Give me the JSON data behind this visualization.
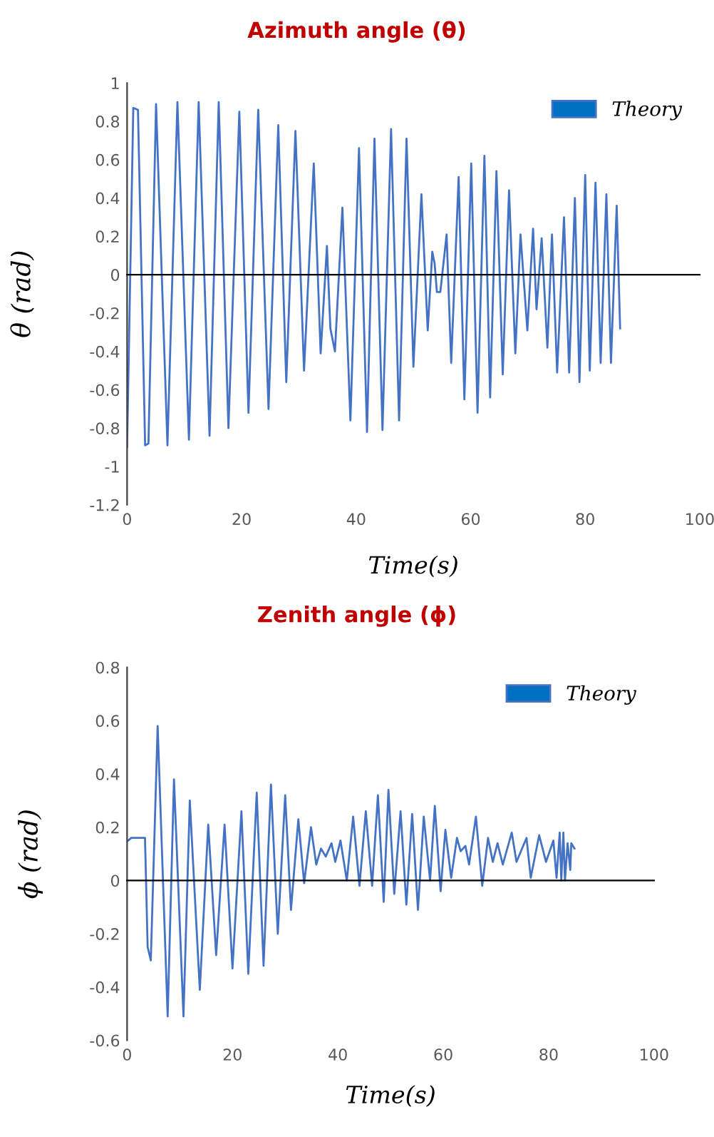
{
  "chart_data": [
    {
      "type": "line",
      "title": "Azimuth angle (θ)",
      "xlabel": "Time(s)",
      "ylabel": "θ (rad)",
      "xlim": [
        0,
        100
      ],
      "xticks": [
        0,
        20,
        40,
        60,
        80,
        100
      ],
      "ylim": [
        -1.2,
        1
      ],
      "yticks": [
        1,
        0.8,
        0.6,
        0.4,
        0.2,
        0,
        -0.2,
        -0.4,
        -0.6,
        -0.8,
        -1,
        -1.2
      ],
      "legend": "top right",
      "marker": "none",
      "line_style": "solid",
      "series": [
        {
          "name": "Theory",
          "color": "#4472c4",
          "x": [
            0,
            1.08,
            1.9,
            3.15,
            3.73,
            5.06,
            7.05,
            8.79,
            10.8,
            12.5,
            14.4,
            16.0,
            17.7,
            19.6,
            21.2,
            22.9,
            24.7,
            26.4,
            27.8,
            29.4,
            30.9,
            32.6,
            33.8,
            34.9,
            35.5,
            36.3,
            37.6,
            39.0,
            40.5,
            41.9,
            43.2,
            44.6,
            46.1,
            47.5,
            48.8,
            50.0,
            51.4,
            52.5,
            53.3,
            53.7,
            54.1,
            54.7,
            55.8,
            56.6,
            57.9,
            58.9,
            60.1,
            61.2,
            62.4,
            63.4,
            64.5,
            65.6,
            66.7,
            67.8,
            68.7,
            69.9,
            70.9,
            71.5,
            72.4,
            73.4,
            74.2,
            75.1,
            76.3,
            77.2,
            78.2,
            79.0,
            80.0,
            80.8,
            81.8,
            82.7,
            83.7,
            84.5,
            85.5,
            86.1
          ],
          "values": [
            -0.9,
            0.87,
            0.86,
            -0.89,
            -0.88,
            0.89,
            -0.89,
            0.9,
            -0.86,
            0.9,
            -0.84,
            0.9,
            -0.8,
            0.85,
            -0.72,
            0.86,
            -0.7,
            0.78,
            -0.56,
            0.75,
            -0.5,
            0.58,
            -0.41,
            0.15,
            -0.28,
            -0.4,
            0.35,
            -0.76,
            0.66,
            -0.82,
            0.71,
            -0.81,
            0.76,
            -0.76,
            0.71,
            -0.48,
            0.42,
            -0.29,
            0.12,
            0.06,
            -0.09,
            -0.09,
            0.21,
            -0.46,
            0.51,
            -0.65,
            0.58,
            -0.72,
            0.62,
            -0.64,
            0.54,
            -0.52,
            0.44,
            -0.41,
            0.21,
            -0.29,
            0.24,
            -0.18,
            0.19,
            -0.38,
            0.21,
            -0.51,
            0.3,
            -0.51,
            0.4,
            -0.56,
            0.52,
            -0.5,
            0.48,
            -0.46,
            0.42,
            -0.46,
            0.36,
            -0.28
          ]
        }
      ]
    },
    {
      "type": "line",
      "title": "Zenith angle (ϕ)",
      "xlabel": "Time(s)",
      "ylabel": "ϕ (rad)",
      "xlim": [
        0,
        100
      ],
      "xticks": [
        0,
        20,
        40,
        60,
        80,
        100
      ],
      "ylim": [
        -0.6,
        0.8
      ],
      "yticks": [
        0.8,
        0.6,
        0.4,
        0.2,
        0,
        -0.2,
        -0.4,
        -0.6
      ],
      "legend": "top right",
      "marker": "none",
      "line_style": "solid",
      "series": [
        {
          "name": "Theory",
          "color": "#4472c4",
          "x": [
            0.2,
            0.8,
            3.4,
            3.9,
            4.5,
            5.8,
            7.7,
            8.9,
            10.7,
            11.9,
            13.8,
            15.4,
            16.9,
            18.5,
            20.0,
            21.7,
            23.0,
            24.6,
            25.9,
            27.3,
            28.6,
            30.0,
            31.1,
            32.5,
            33.6,
            34.9,
            35.9,
            36.8,
            37.7,
            38.8,
            39.5,
            40.5,
            41.7,
            42.9,
            44.1,
            45.3,
            46.5,
            47.6,
            48.7,
            49.6,
            50.7,
            51.9,
            53.0,
            54.1,
            55.2,
            56.3,
            57.5,
            58.4,
            59.5,
            60.4,
            61.5,
            62.6,
            63.3,
            64.2,
            64.9,
            66.2,
            67.4,
            68.5,
            69.4,
            70.3,
            71.3,
            73.0,
            73.9,
            75.8,
            76.6,
            78.2,
            79.5,
            80.9,
            81.5,
            82.1,
            82.4,
            82.8,
            83.1,
            83.6,
            84.1,
            84.3,
            84.9
          ],
          "values": [
            0.15,
            0.16,
            0.16,
            -0.25,
            -0.3,
            0.58,
            -0.51,
            0.38,
            -0.51,
            0.3,
            -0.41,
            0.21,
            -0.28,
            0.21,
            -0.33,
            0.26,
            -0.35,
            0.33,
            -0.32,
            0.36,
            -0.2,
            0.32,
            -0.11,
            0.23,
            -0.01,
            0.2,
            0.06,
            0.12,
            0.09,
            0.14,
            0.07,
            0.15,
            0.0,
            0.24,
            -0.02,
            0.26,
            -0.02,
            0.32,
            -0.08,
            0.34,
            -0.05,
            0.26,
            -0.09,
            0.25,
            -0.11,
            0.24,
            0.0,
            0.28,
            -0.04,
            0.19,
            0.01,
            0.16,
            0.11,
            0.13,
            0.06,
            0.24,
            -0.02,
            0.16,
            0.07,
            0.14,
            0.06,
            0.18,
            0.07,
            0.16,
            0.01,
            0.17,
            0.07,
            0.15,
            0.01,
            0.18,
            0.0,
            0.18,
            0.0,
            0.14,
            0.04,
            0.14,
            0.12
          ]
        }
      ]
    }
  ]
}
